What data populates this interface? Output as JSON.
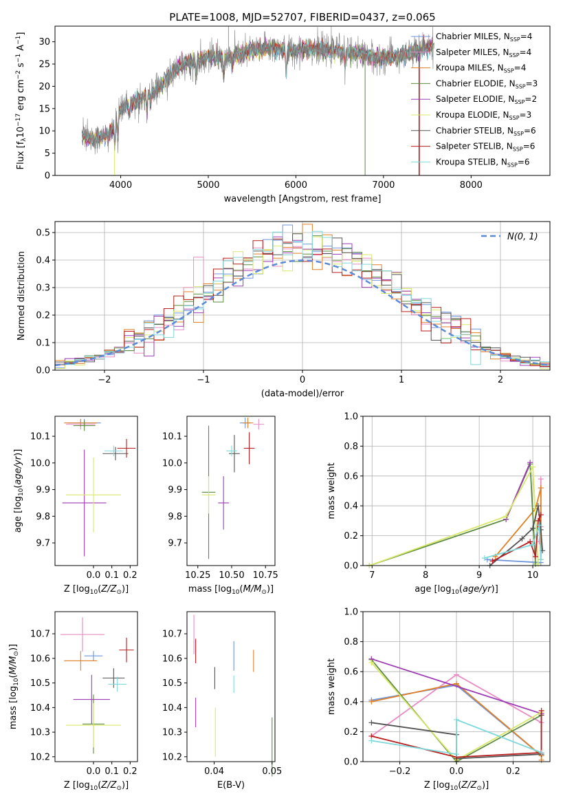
{
  "figure_title": "PLATE=1008, MJD=52707, FIBERID=0437, z=0.065",
  "palette": [
    "#6f94dc",
    "#e88bc4",
    "#e07f26",
    "#5c8a3f",
    "#9c3bb4",
    "#d8e868",
    "#525252",
    "#b81c1c",
    "#7fd8da"
  ],
  "chart_data": [
    {
      "id": "spectrum",
      "type": "line",
      "xlabel": "wavelength [Angstrom, rest frame]",
      "ylabel": "Flux [f_λ 10^-17 erg cm^-2 s^-1 A^-1]",
      "xlim": [
        3250,
        8900
      ],
      "ylim": [
        0,
        33.5
      ],
      "xticks": [
        4000,
        5000,
        6000,
        7000,
        8000
      ],
      "yticks": [
        0,
        5,
        10,
        15,
        20,
        25,
        30
      ],
      "grid": false,
      "legend_position": "top-right",
      "data_color": "#808080",
      "legend": [
        {
          "name": "Chabrier MILES, N",
          "sub": "SSP",
          "tail": "=4"
        },
        {
          "name": "Salpeter MILES, N",
          "sub": "SSP",
          "tail": "=4"
        },
        {
          "name": "Kroupa MILES, N",
          "sub": "SSP",
          "tail": "=4"
        },
        {
          "name": "Chabrier ELODIE, N",
          "sub": "SSP",
          "tail": "=3"
        },
        {
          "name": "Salpeter ELODIE, N",
          "sub": "SSP",
          "tail": "=2"
        },
        {
          "name": "Kroupa ELODIE, N",
          "sub": "SSP",
          "tail": "=3"
        },
        {
          "name": "Chabrier STELIB, N",
          "sub": "SSP",
          "tail": "=6"
        },
        {
          "name": "Salpeter STELIB, N",
          "sub": "SSP",
          "tail": "=6"
        },
        {
          "name": "Kroupa STELIB, N",
          "sub": "SSP",
          "tail": "=6"
        }
      ],
      "continuum": [
        [
          3550,
          9
        ],
        [
          3700,
          8
        ],
        [
          3850,
          9
        ],
        [
          3930,
          11
        ],
        [
          4000,
          15
        ],
        [
          4100,
          16
        ],
        [
          4200,
          17
        ],
        [
          4300,
          18
        ],
        [
          4400,
          19
        ],
        [
          4500,
          21
        ],
        [
          4600,
          23
        ],
        [
          4700,
          25
        ],
        [
          4800,
          25.5
        ],
        [
          4900,
          26
        ],
        [
          5000,
          26.5
        ],
        [
          5100,
          26.5
        ],
        [
          5200,
          26
        ],
        [
          5300,
          27
        ],
        [
          5400,
          27.5
        ],
        [
          5500,
          28
        ],
        [
          5600,
          28.5
        ],
        [
          5700,
          28.5
        ],
        [
          5800,
          28.5
        ],
        [
          5900,
          28
        ],
        [
          6000,
          28
        ],
        [
          6100,
          28.5
        ],
        [
          6200,
          28.5
        ],
        [
          6300,
          28
        ],
        [
          6400,
          28
        ],
        [
          6500,
          28
        ],
        [
          6600,
          27.5
        ],
        [
          6700,
          27.5
        ],
        [
          6800,
          27
        ],
        [
          6900,
          26.5
        ],
        [
          7000,
          26.5
        ],
        [
          7100,
          26.5
        ],
        [
          7200,
          27
        ],
        [
          7300,
          27.5
        ],
        [
          7400,
          28
        ],
        [
          7550,
          29
        ]
      ],
      "absorption_lines": [
        [
          3934,
          5
        ],
        [
          3968,
          5
        ],
        [
          4102,
          3
        ],
        [
          4300,
          4
        ],
        [
          4340,
          3
        ],
        [
          4861,
          3
        ],
        [
          5175,
          4
        ],
        [
          5270,
          2
        ],
        [
          5890,
          6
        ],
        [
          6563,
          3
        ]
      ]
    },
    {
      "id": "residuals",
      "type": "histogram",
      "xlabel": "(data-model)/error",
      "ylabel": "Normed distribution",
      "xlim": [
        -2.5,
        2.5
      ],
      "ylim": [
        0,
        0.54
      ],
      "xticks": [
        -2,
        -1,
        0,
        1,
        2
      ],
      "yticks": [
        0.0,
        0.1,
        0.2,
        0.3,
        0.4,
        0.5
      ],
      "grid": true,
      "legend_position": "top-right",
      "reference_curve": {
        "label": "N(0, 1)",
        "mean": 0,
        "sigma": 1,
        "color": "#5b8ad6"
      },
      "bin_width": 0.1
    },
    {
      "id": "age-vs-metallicity",
      "type": "errorbar",
      "xlabel": "Z [log10(Z/Z⊙)]",
      "ylabel": "age [log10(age/yr)]",
      "xlim": [
        -0.21,
        0.24
      ],
      "ylim": [
        9.615,
        10.175
      ],
      "xticks": [
        -0.0,
        0.1,
        0.2
      ],
      "yticks": [
        9.7,
        9.8,
        9.9,
        10.0,
        10.1
      ],
      "tick_labels_x": [
        "0.0",
        "0.1",
        "0.2"
      ],
      "points": [
        {
          "x": -0.05,
          "xerr": 0.09,
          "y": 10.15,
          "yerr": 0.015
        },
        {
          "x": -0.07,
          "xerr": 0.08,
          "y": 10.145,
          "yerr": 0.02
        },
        {
          "x": -0.07,
          "xerr": 0.09,
          "y": 10.15,
          "yerr": 0.015
        },
        {
          "x": -0.05,
          "xerr": 0.06,
          "y": 10.14,
          "yerr": 0.02
        },
        {
          "x": -0.05,
          "xerr": 0.12,
          "y": 9.85,
          "yerr": 0.2
        },
        {
          "x": 0.0,
          "xerr": 0.15,
          "y": 9.88,
          "yerr": 0.14
        },
        {
          "x": 0.12,
          "xerr": 0.07,
          "y": 10.035,
          "yerr": 0.025
        },
        {
          "x": 0.18,
          "xerr": 0.05,
          "y": 10.055,
          "yerr": 0.035
        },
        {
          "x": 0.11,
          "xerr": 0.05,
          "y": 10.045,
          "yerr": 0.02
        }
      ]
    },
    {
      "id": "age-vs-mass",
      "type": "errorbar",
      "xlabel": "mass [log10(M/M⊙)]",
      "ylabel": "",
      "xlim": [
        10.17,
        10.82
      ],
      "ylim": [
        9.615,
        10.175
      ],
      "xticks": [
        10.25,
        10.5,
        10.75
      ],
      "yticks": [
        9.7,
        9.8,
        9.9,
        10.0,
        10.1
      ],
      "tick_labels_x": [
        "10.25",
        "10.50",
        "10.75"
      ],
      "points": [
        {
          "x": 10.6,
          "xerr": 0.04,
          "y": 10.15,
          "yerr": 0.02
        },
        {
          "x": 10.7,
          "xerr": 0.04,
          "y": 10.145,
          "yerr": 0.02
        },
        {
          "x": 10.62,
          "xerr": 0.04,
          "y": 10.15,
          "yerr": 0.02
        },
        {
          "x": 10.33,
          "xerr": 0.05,
          "y": 9.89,
          "yerr": 0.25
        },
        {
          "x": 10.44,
          "xerr": 0.04,
          "y": 9.85,
          "yerr": 0.1
        },
        {
          "x": 10.33,
          "xerr": 0.05,
          "y": 9.88,
          "yerr": 0.07
        },
        {
          "x": 10.52,
          "xerr": 0.04,
          "y": 10.035,
          "yerr": 0.07
        },
        {
          "x": 10.63,
          "xerr": 0.04,
          "y": 10.055,
          "yerr": 0.06
        },
        {
          "x": 10.5,
          "xerr": 0.04,
          "y": 10.045,
          "yerr": 0.02
        }
      ]
    },
    {
      "id": "mass-weight-vs-age",
      "type": "line",
      "xlabel": "age [log10(age/yr)]",
      "ylabel": "mass weight",
      "xlim": [
        6.83,
        10.32
      ],
      "ylim": [
        0,
        1.0
      ],
      "xticks": [
        7,
        8,
        9,
        10
      ],
      "yticks": [
        0.0,
        0.2,
        0.4,
        0.6,
        0.8,
        1.0
      ],
      "grid": true,
      "series": [
        {
          "color_index": 0,
          "x": [
            9.15,
            10.15
          ],
          "y": [
            0.04,
            0.02
          ]
        },
        {
          "color_index": 1,
          "x": [
            10.15,
            10.15,
            10.12
          ],
          "y": [
            0.58,
            0.26,
            0.16
          ]
        },
        {
          "color_index": 2,
          "x": [
            9.3,
            10.05,
            10.15,
            10.15
          ],
          "y": [
            0.06,
            0.38,
            0.52,
            0.04
          ]
        },
        {
          "color_index": 3,
          "x": [
            6.95,
            9.5,
            9.95,
            10.05
          ],
          "y": [
            0.0,
            0.31,
            0.68,
            0.01
          ]
        },
        {
          "color_index": 4,
          "x": [
            9.5,
            9.95
          ],
          "y": [
            0.31,
            0.69
          ]
        },
        {
          "color_index": 5,
          "x": [
            6.95,
            9.5,
            10.0,
            10.1
          ],
          "y": [
            0.0,
            0.33,
            0.66,
            0.01
          ]
        },
        {
          "color_index": 6,
          "x": [
            9.2,
            9.8,
            10.0,
            10.1,
            10.15,
            10.18
          ],
          "y": [
            0.0,
            0.18,
            0.25,
            0.4,
            0.24,
            0.1
          ]
        },
        {
          "color_index": 7,
          "x": [
            9.25,
            9.95,
            10.05,
            10.1,
            10.15
          ],
          "y": [
            0.03,
            0.16,
            0.06,
            0.3,
            0.34
          ]
        },
        {
          "color_index": 8,
          "x": [
            9.1,
            10.0,
            10.12,
            10.15
          ],
          "y": [
            0.05,
            0.14,
            0.27,
            0.04
          ]
        }
      ]
    },
    {
      "id": "mass-vs-metallicity",
      "type": "errorbar",
      "xlabel": "Z [log10(Z/Z⊙)]",
      "ylabel": "mass [log10(M/M⊙)]",
      "xlim": [
        -0.21,
        0.24
      ],
      "ylim": [
        10.18,
        10.79
      ],
      "xticks": [
        -0.0,
        0.1,
        0.2
      ],
      "yticks": [
        10.2,
        10.3,
        10.4,
        10.5,
        10.6,
        10.7
      ],
      "tick_labels_x": [
        "0.0",
        "0.1",
        "0.2"
      ],
      "points": [
        {
          "x": 0.0,
          "xerr": 0.05,
          "y": 10.61,
          "yerr": 0.02
        },
        {
          "x": -0.06,
          "xerr": 0.12,
          "y": 10.697,
          "yerr": 0.07
        },
        {
          "x": -0.07,
          "xerr": 0.09,
          "y": 10.59,
          "yerr": 0.04
        },
        {
          "x": -0.0,
          "xerr": 0.06,
          "y": 10.333,
          "yerr": 0.12
        },
        {
          "x": -0.01,
          "xerr": 0.1,
          "y": 10.433,
          "yerr": 0.1
        },
        {
          "x": 0.0,
          "xerr": 0.15,
          "y": 10.328,
          "yerr": 0.09
        },
        {
          "x": 0.11,
          "xerr": 0.06,
          "y": 10.52,
          "yerr": 0.04
        },
        {
          "x": 0.18,
          "xerr": 0.04,
          "y": 10.634,
          "yerr": 0.05
        },
        {
          "x": 0.13,
          "xerr": 0.05,
          "y": 10.495,
          "yerr": 0.03
        }
      ]
    },
    {
      "id": "mass-vs-ebv",
      "type": "errorbar",
      "xlabel": "E(B-V)",
      "ylabel": "",
      "xlim": [
        0.0353,
        0.0505
      ],
      "ylim": [
        10.18,
        10.79
      ],
      "xticks": [
        0.04,
        0.05
      ],
      "yticks": [
        10.2,
        10.3,
        10.4,
        10.5,
        10.6,
        10.7
      ],
      "tick_labels_x": [
        "0.04",
        "0.05"
      ],
      "points": [
        {
          "x": 0.0434,
          "xerr": 0,
          "y": 10.61,
          "yerr": 0.06
        },
        {
          "x": 0.0365,
          "xerr": 0,
          "y": 10.697,
          "yerr": 0.08
        },
        {
          "x": 0.0468,
          "xerr": 0,
          "y": 10.59,
          "yerr": 0.045
        },
        {
          "x": 0.05,
          "xerr": 0,
          "y": 10.24,
          "yerr": 0.12
        },
        {
          "x": 0.0368,
          "xerr": 0,
          "y": 10.38,
          "yerr": 0.06
        },
        {
          "x": 0.0402,
          "xerr": 0,
          "y": 10.3,
          "yerr": 0.1
        },
        {
          "x": 0.0401,
          "xerr": 0,
          "y": 10.52,
          "yerr": 0.045
        },
        {
          "x": 0.0368,
          "xerr": 0,
          "y": 10.63,
          "yerr": 0.05
        },
        {
          "x": 0.0434,
          "xerr": 0,
          "y": 10.495,
          "yerr": 0.035
        }
      ]
    },
    {
      "id": "mass-weight-vs-metallicity",
      "type": "line",
      "xlabel": "Z [log10(Z/Z⊙)]",
      "ylabel": "mass weight",
      "xlim": [
        -0.33,
        0.33
      ],
      "ylim": [
        0,
        1.0
      ],
      "xticks": [
        -0.2,
        0.0,
        0.2
      ],
      "tick_labels_x": [
        "−0.2",
        "0.0",
        "0.2"
      ],
      "yticks": [
        0.0,
        0.2,
        0.4,
        0.6,
        0.8,
        1.0
      ],
      "grid": true,
      "series": [
        {
          "color_index": 0,
          "x": [
            -0.3,
            0.0,
            0.3
          ],
          "y": [
            0.41,
            0.51,
            0.04
          ]
        },
        {
          "color_index": 1,
          "x": [
            -0.3,
            0.0,
            0.3
          ],
          "y": [
            0.17,
            0.58,
            0.26
          ]
        },
        {
          "color_index": 2,
          "x": [
            -0.3,
            0.0,
            0.3,
            0.3
          ],
          "y": [
            0.4,
            0.52,
            0.04,
            0.01
          ]
        },
        {
          "color_index": 3,
          "x": [
            -0.3,
            0.0,
            0.3
          ],
          "y": [
            0.68,
            0.0,
            0.31
          ]
        },
        {
          "color_index": 4,
          "x": [
            -0.3,
            0.3
          ],
          "y": [
            0.685,
            0.32
          ]
        },
        {
          "color_index": 5,
          "x": [
            -0.3,
            0.0,
            0.3
          ],
          "y": [
            0.66,
            0.01,
            0.33
          ]
        },
        {
          "color_index": 6,
          "x": [
            -0.3,
            0.0,
            0.0,
            0.3,
            0.3
          ],
          "y": [
            0.26,
            0.18,
            0.02,
            0.05,
            0.31
          ]
        },
        {
          "color_index": 7,
          "x": [
            -0.3,
            0.0,
            0.3,
            0.3
          ],
          "y": [
            0.17,
            0.03,
            0.06,
            0.34
          ]
        },
        {
          "color_index": 8,
          "x": [
            -0.3,
            0.0,
            0.0,
            0.3
          ],
          "y": [
            0.14,
            0.05,
            0.28,
            0.06
          ]
        }
      ]
    }
  ]
}
